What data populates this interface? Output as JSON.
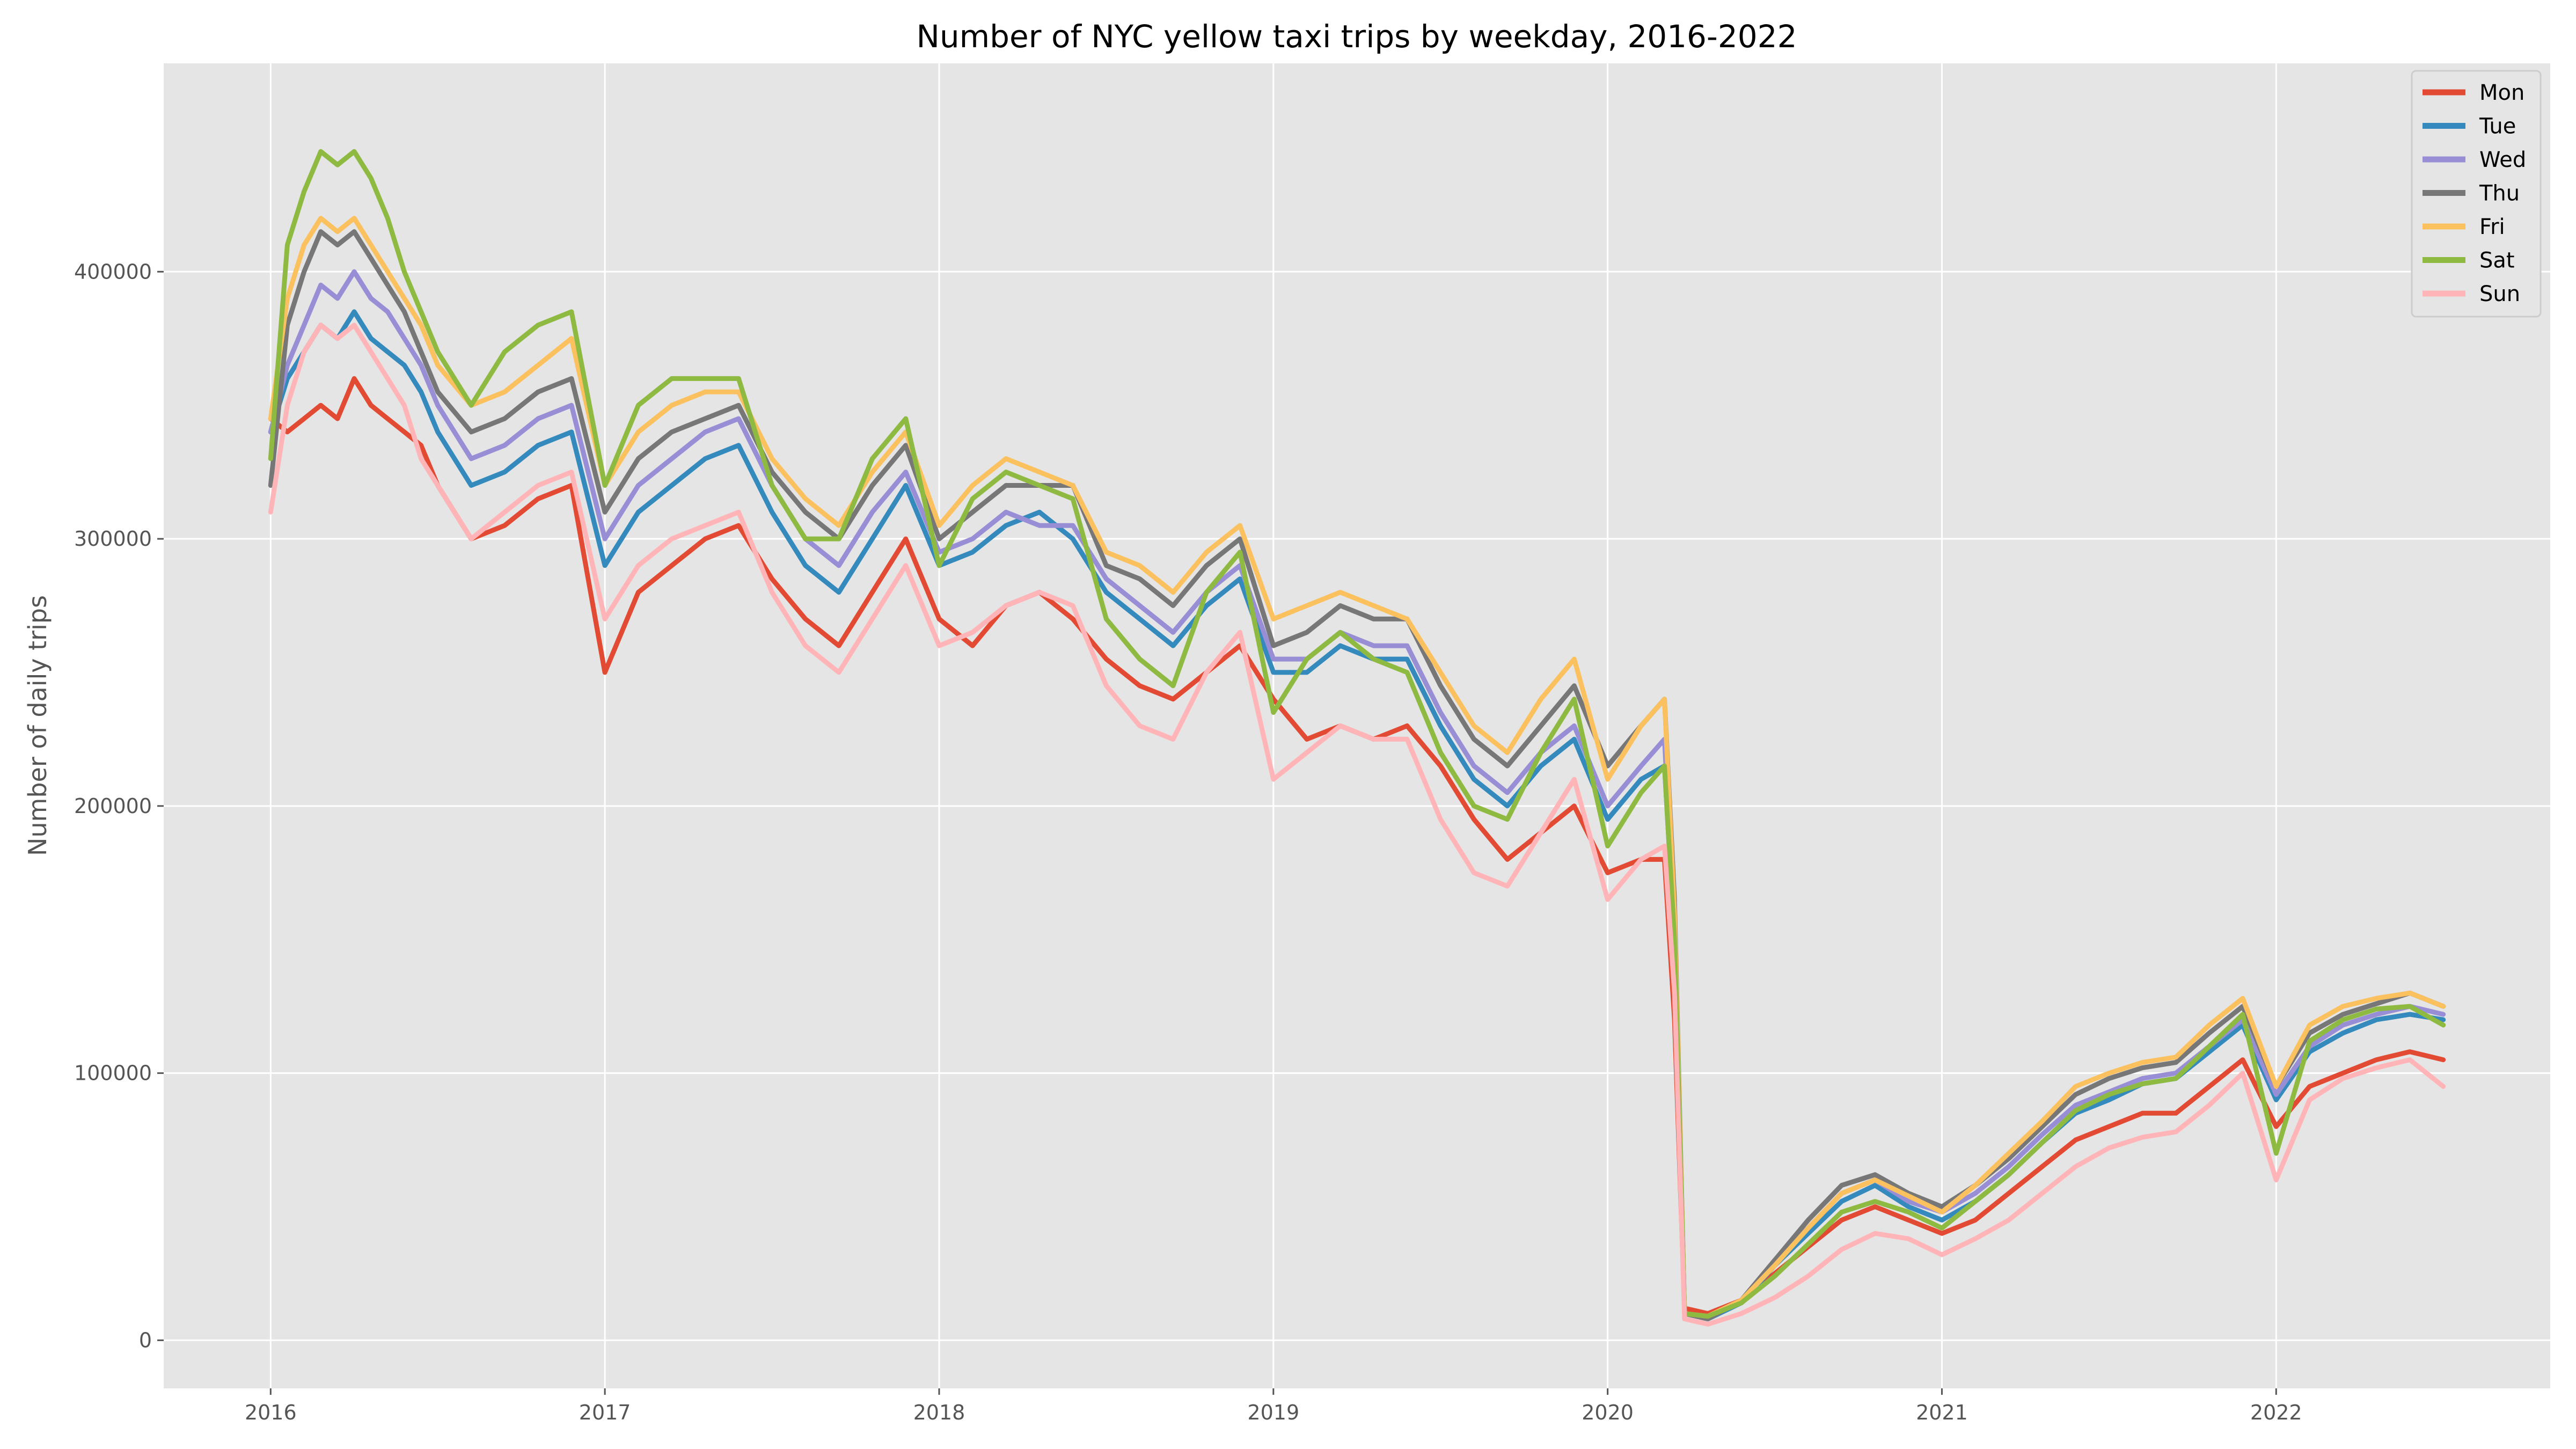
{
  "chart_data": {
    "type": "line",
    "title": "Number of NYC yellow taxi trips by weekday, 2016-2022",
    "xlabel": "",
    "ylabel": "Number of daily trips",
    "xlim": [
      2015.68,
      2022.82
    ],
    "ylim": [
      -18000,
      478000
    ],
    "x_ticks": [
      2016,
      2017,
      2018,
      2019,
      2020,
      2021,
      2022
    ],
    "x_tick_labels": [
      "2016",
      "2017",
      "2018",
      "2019",
      "2020",
      "2021",
      "2022"
    ],
    "y_ticks": [
      0,
      100000,
      200000,
      300000,
      400000
    ],
    "y_tick_labels": [
      "0",
      "100000",
      "200000",
      "300000",
      "400000"
    ],
    "grid": true,
    "legend_position": "top-right",
    "x": [
      2016.0,
      2016.05,
      2016.1,
      2016.15,
      2016.2,
      2016.25,
      2016.3,
      2016.35,
      2016.4,
      2016.45,
      2016.5,
      2016.6,
      2016.7,
      2016.8,
      2016.9,
      2017.0,
      2017.1,
      2017.2,
      2017.3,
      2017.4,
      2017.5,
      2017.6,
      2017.7,
      2017.8,
      2017.9,
      2018.0,
      2018.1,
      2018.2,
      2018.3,
      2018.4,
      2018.5,
      2018.6,
      2018.7,
      2018.8,
      2018.9,
      2019.0,
      2019.1,
      2019.2,
      2019.3,
      2019.4,
      2019.5,
      2019.6,
      2019.7,
      2019.8,
      2019.9,
      2020.0,
      2020.1,
      2020.17,
      2020.2,
      2020.23,
      2020.3,
      2020.4,
      2020.5,
      2020.6,
      2020.7,
      2020.8,
      2020.9,
      2021.0,
      2021.1,
      2021.2,
      2021.3,
      2021.4,
      2021.5,
      2021.6,
      2021.7,
      2021.8,
      2021.9,
      2022.0,
      2022.1,
      2022.2,
      2022.3,
      2022.4,
      2022.5
    ],
    "series": [
      {
        "name": "Mon",
        "color": "#e24a33",
        "values": [
          345000,
          340000,
          345000,
          350000,
          345000,
          360000,
          350000,
          345000,
          340000,
          335000,
          320000,
          300000,
          305000,
          315000,
          320000,
          250000,
          280000,
          290000,
          300000,
          305000,
          285000,
          270000,
          260000,
          280000,
          300000,
          270000,
          260000,
          275000,
          280000,
          270000,
          255000,
          245000,
          240000,
          250000,
          260000,
          240000,
          225000,
          230000,
          225000,
          230000,
          215000,
          195000,
          180000,
          190000,
          200000,
          175000,
          180000,
          180000,
          120000,
          12000,
          10000,
          15000,
          25000,
          35000,
          45000,
          50000,
          45000,
          40000,
          45000,
          55000,
          65000,
          75000,
          80000,
          85000,
          85000,
          95000,
          105000,
          80000,
          95000,
          100000,
          105000,
          108000,
          105000
        ]
      },
      {
        "name": "Tue",
        "color": "#348abd",
        "values": [
          340000,
          360000,
          370000,
          380000,
          375000,
          385000,
          375000,
          370000,
          365000,
          355000,
          340000,
          320000,
          325000,
          335000,
          340000,
          290000,
          310000,
          320000,
          330000,
          335000,
          310000,
          290000,
          280000,
          300000,
          320000,
          290000,
          295000,
          305000,
          310000,
          300000,
          280000,
          270000,
          260000,
          275000,
          285000,
          250000,
          250000,
          260000,
          255000,
          255000,
          230000,
          210000,
          200000,
          215000,
          225000,
          195000,
          210000,
          215000,
          150000,
          10000,
          8000,
          14000,
          28000,
          40000,
          52000,
          58000,
          50000,
          45000,
          52000,
          62000,
          74000,
          85000,
          90000,
          96000,
          98000,
          108000,
          118000,
          90000,
          108000,
          115000,
          120000,
          122000,
          120000
        ]
      },
      {
        "name": "Wed",
        "color": "#988ed5",
        "values": [
          340000,
          365000,
          380000,
          395000,
          390000,
          400000,
          390000,
          385000,
          375000,
          365000,
          350000,
          330000,
          335000,
          345000,
          350000,
          300000,
          320000,
          330000,
          340000,
          345000,
          320000,
          300000,
          290000,
          310000,
          325000,
          295000,
          300000,
          310000,
          305000,
          305000,
          285000,
          275000,
          265000,
          280000,
          290000,
          255000,
          255000,
          265000,
          260000,
          260000,
          235000,
          215000,
          205000,
          220000,
          230000,
          200000,
          215000,
          225000,
          155000,
          10000,
          8000,
          15000,
          30000,
          42000,
          55000,
          60000,
          52000,
          48000,
          55000,
          65000,
          77000,
          88000,
          93000,
          98000,
          100000,
          110000,
          120000,
          92000,
          110000,
          118000,
          122000,
          125000,
          122000
        ]
      },
      {
        "name": "Thu",
        "color": "#777777",
        "values": [
          320000,
          380000,
          400000,
          415000,
          410000,
          415000,
          405000,
          395000,
          385000,
          370000,
          355000,
          340000,
          345000,
          355000,
          360000,
          310000,
          330000,
          340000,
          345000,
          350000,
          325000,
          310000,
          300000,
          320000,
          335000,
          300000,
          310000,
          320000,
          320000,
          320000,
          290000,
          285000,
          275000,
          290000,
          300000,
          260000,
          265000,
          275000,
          270000,
          270000,
          245000,
          225000,
          215000,
          230000,
          245000,
          215000,
          230000,
          240000,
          165000,
          10000,
          8000,
          15000,
          30000,
          45000,
          58000,
          62000,
          55000,
          50000,
          58000,
          68000,
          80000,
          92000,
          98000,
          102000,
          104000,
          115000,
          125000,
          95000,
          115000,
          122000,
          126000,
          130000,
          125000
        ]
      },
      {
        "name": "Fri",
        "color": "#fbc15e",
        "values": [
          345000,
          390000,
          410000,
          420000,
          415000,
          420000,
          410000,
          400000,
          390000,
          380000,
          365000,
          350000,
          355000,
          365000,
          375000,
          320000,
          340000,
          350000,
          355000,
          355000,
          330000,
          315000,
          305000,
          325000,
          340000,
          305000,
          320000,
          330000,
          325000,
          320000,
          295000,
          290000,
          280000,
          295000,
          305000,
          270000,
          275000,
          280000,
          275000,
          270000,
          250000,
          230000,
          220000,
          240000,
          255000,
          210000,
          230000,
          240000,
          160000,
          10000,
          9000,
          15000,
          28000,
          42000,
          55000,
          60000,
          54000,
          48000,
          58000,
          70000,
          82000,
          95000,
          100000,
          104000,
          106000,
          118000,
          128000,
          95000,
          118000,
          125000,
          128000,
          130000,
          125000
        ]
      },
      {
        "name": "Sat",
        "color": "#8eba42",
        "values": [
          330000,
          410000,
          430000,
          445000,
          440000,
          445000,
          435000,
          420000,
          400000,
          385000,
          370000,
          350000,
          370000,
          380000,
          385000,
          320000,
          350000,
          360000,
          360000,
          360000,
          320000,
          300000,
          300000,
          330000,
          345000,
          290000,
          315000,
          325000,
          320000,
          315000,
          270000,
          255000,
          245000,
          280000,
          295000,
          235000,
          255000,
          265000,
          255000,
          250000,
          220000,
          200000,
          195000,
          220000,
          240000,
          185000,
          205000,
          215000,
          150000,
          10000,
          9000,
          14000,
          24000,
          36000,
          48000,
          52000,
          48000,
          42000,
          52000,
          62000,
          74000,
          86000,
          92000,
          96000,
          98000,
          110000,
          122000,
          70000,
          112000,
          120000,
          124000,
          125000,
          118000
        ]
      },
      {
        "name": "Sun",
        "color": "#ffb5b8",
        "values": [
          310000,
          350000,
          370000,
          380000,
          375000,
          380000,
          370000,
          360000,
          350000,
          330000,
          320000,
          300000,
          310000,
          320000,
          325000,
          270000,
          290000,
          300000,
          305000,
          310000,
          280000,
          260000,
          250000,
          270000,
          290000,
          260000,
          265000,
          275000,
          280000,
          275000,
          245000,
          230000,
          225000,
          250000,
          265000,
          210000,
          220000,
          230000,
          225000,
          225000,
          195000,
          175000,
          170000,
          190000,
          210000,
          165000,
          180000,
          185000,
          130000,
          8000,
          6000,
          10000,
          16000,
          24000,
          34000,
          40000,
          38000,
          32000,
          38000,
          45000,
          55000,
          65000,
          72000,
          76000,
          78000,
          88000,
          100000,
          60000,
          90000,
          98000,
          102000,
          105000,
          95000
        ]
      }
    ]
  }
}
